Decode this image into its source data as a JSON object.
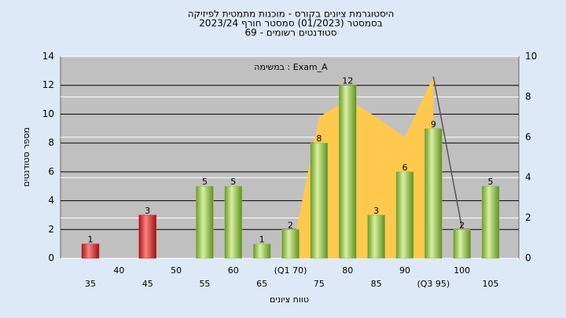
{
  "chart_data": {
    "type": "bar",
    "title_lines": [
      "היסטוגרמת ציונים בקורס - מוכנות מתמטית לפיזיקה",
      "בסמסטר  (01/2023)  סמסטר חורף  2023/24",
      "סטודנטים רשומים - 69"
    ],
    "annotation": "במשימה : Exam_A",
    "x_label": "טווח ציונים",
    "y_label": "מספר סטודנטים",
    "categories": [
      "35",
      "40",
      "45",
      "50",
      "55",
      "60",
      "65",
      "(Q1 70)",
      "75",
      "80",
      "85",
      "90",
      "(Q3 95)",
      "100",
      "105"
    ],
    "values": [
      1,
      null,
      3,
      null,
      5,
      5,
      1,
      2,
      8,
      12,
      3,
      6,
      9,
      2,
      5
    ],
    "colors": [
      "#d42a2a",
      null,
      "#d42a2a",
      null,
      "#8cc43c",
      "#8cc43c",
      "#8cc43c",
      "#8cc43c",
      "#8cc43c",
      "#8cc43c",
      "#8cc43c",
      "#8cc43c",
      "#8cc43c",
      "#8cc43c",
      "#8cc43c"
    ],
    "overlays": [
      {
        "type": "area",
        "axis": "y2",
        "color": "#ffc94d",
        "values": [
          null,
          null,
          null,
          null,
          null,
          null,
          null,
          0,
          7,
          7.9,
          7,
          6,
          9,
          null,
          null
        ]
      },
      {
        "type": "line",
        "axis": "y2",
        "color": "#555555",
        "values": [
          null,
          null,
          null,
          null,
          null,
          null,
          null,
          null,
          null,
          null,
          null,
          null,
          9,
          1.5,
          null
        ]
      }
    ],
    "ylim": [
      0,
      14
    ],
    "yticks": [
      0,
      2,
      4,
      6,
      8,
      10,
      12,
      14
    ],
    "y2lim": [
      0,
      10
    ],
    "y2ticks": [
      0,
      2,
      4,
      6,
      8,
      10
    ],
    "grid": true
  }
}
